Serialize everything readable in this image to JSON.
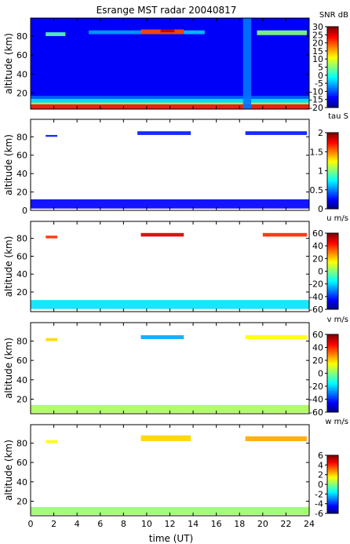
{
  "figure": {
    "title": "Esrange MST radar 20040817",
    "xlabel": "time (UT)",
    "xlim": [
      0,
      24
    ],
    "xticks": [
      0,
      2,
      4,
      6,
      8,
      10,
      12,
      14,
      16,
      18,
      20,
      22,
      24
    ]
  },
  "chart_data": [
    {
      "type": "heatmap",
      "quantity": "SNR",
      "colorbar_label": "SNR dB",
      "ylabel": "altitude (km)",
      "ylim": [
        3,
        99
      ],
      "yticks": [
        20,
        40,
        60,
        80
      ],
      "clim": [
        -20,
        30
      ],
      "cticks": [
        -20,
        -15,
        -10,
        -5,
        0,
        5,
        10,
        15,
        20,
        25,
        30
      ],
      "regions": [
        {
          "t": [
            0,
            24
          ],
          "alt": [
            3,
            8
          ],
          "value": 22
        },
        {
          "t": [
            0,
            24
          ],
          "alt": [
            8,
            10
          ],
          "value": 8
        },
        {
          "t": [
            0,
            24
          ],
          "alt": [
            10,
            14
          ],
          "value": -2
        },
        {
          "t": [
            0,
            24
          ],
          "alt": [
            14,
            17
          ],
          "value": -9
        },
        {
          "t": [
            1.3,
            3.0
          ],
          "alt": [
            80,
            84
          ],
          "value": 3
        },
        {
          "t": [
            5,
            9.5
          ],
          "alt": [
            82,
            86
          ],
          "value": -6
        },
        {
          "t": [
            9.5,
            13.2
          ],
          "alt": [
            82,
            87
          ],
          "value": 20
        },
        {
          "t": [
            11.2,
            12.4
          ],
          "alt": [
            84,
            87
          ],
          "value": 27
        },
        {
          "t": [
            13.2,
            15
          ],
          "alt": [
            82,
            86
          ],
          "value": -4
        },
        {
          "t": [
            18.3,
            19.0
          ],
          "alt": [
            3,
            99
          ],
          "value": -8
        },
        {
          "t": [
            19.5,
            23.8
          ],
          "alt": [
            81,
            86
          ],
          "value": 5
        }
      ]
    },
    {
      "type": "heatmap",
      "quantity": "tau",
      "colorbar_label": "tau S",
      "ylabel": "altitude (km)",
      "ylim": [
        0,
        99
      ],
      "yticks": [
        0,
        20,
        40,
        60,
        80
      ],
      "clim": [
        0,
        2
      ],
      "cticks": [
        0,
        0.5,
        1,
        1.5,
        2
      ],
      "regions": [
        {
          "t": [
            0,
            24
          ],
          "alt": [
            2,
            12
          ],
          "value": 0.25
        },
        {
          "t": [
            1.3,
            2.3
          ],
          "alt": [
            80,
            82
          ],
          "value": 0.3
        },
        {
          "t": [
            9.2,
            13.8
          ],
          "alt": [
            82,
            86
          ],
          "value": 0.3
        },
        {
          "t": [
            18.5,
            23.8
          ],
          "alt": [
            82,
            86
          ],
          "value": 0.3
        }
      ]
    },
    {
      "type": "heatmap",
      "quantity": "u",
      "colorbar_label": "u m/s",
      "ylabel": "altitude (km)",
      "ylim": [
        -2,
        99
      ],
      "yticks": [
        20,
        40,
        60,
        80
      ],
      "clim": [
        -60,
        60
      ],
      "cticks": [
        -60,
        -40,
        -20,
        0,
        20,
        40,
        60
      ],
      "regions": [
        {
          "t": [
            0,
            24
          ],
          "alt": [
            1,
            11
          ],
          "value": -18
        },
        {
          "t": [
            1.3,
            2.3
          ],
          "alt": [
            80,
            83
          ],
          "value": 40
        },
        {
          "t": [
            9.5,
            13.2
          ],
          "alt": [
            82,
            86
          ],
          "value": 50
        },
        {
          "t": [
            20.0,
            23.8
          ],
          "alt": [
            82,
            86
          ],
          "value": 40
        }
      ]
    },
    {
      "type": "heatmap",
      "quantity": "v",
      "colorbar_label": "v m/s",
      "ylabel": "altitude (km)",
      "ylim": [
        5,
        99
      ],
      "yticks": [
        20,
        40,
        60,
        80
      ],
      "clim": [
        -60,
        60
      ],
      "cticks": [
        -60,
        -40,
        -20,
        0,
        20,
        40,
        60
      ],
      "regions": [
        {
          "t": [
            0,
            24
          ],
          "alt": [
            6,
            14
          ],
          "value": 5
        },
        {
          "t": [
            1.3,
            2.3
          ],
          "alt": [
            80,
            83
          ],
          "value": 20
        },
        {
          "t": [
            9.5,
            13.2
          ],
          "alt": [
            82,
            86
          ],
          "value": -25
        },
        {
          "t": [
            18.5,
            23.8
          ],
          "alt": [
            82,
            86
          ],
          "value": 15
        }
      ]
    },
    {
      "type": "heatmap",
      "quantity": "w",
      "colorbar_label": "w m/s",
      "ylabel": "altitude (km)",
      "ylim": [
        5,
        99
      ],
      "yticks": [
        20,
        40,
        60,
        80
      ],
      "clim": [
        -6,
        6
      ],
      "cticks": [
        -6,
        -4,
        -2,
        0,
        2,
        4,
        6
      ],
      "regions": [
        {
          "t": [
            0,
            24
          ],
          "alt": [
            6,
            14
          ],
          "value": 0.3
        },
        {
          "t": [
            1.3,
            2.3
          ],
          "alt": [
            80,
            83
          ],
          "value": 1.5
        },
        {
          "t": [
            9.5,
            13.8
          ],
          "alt": [
            82,
            88
          ],
          "value": 2
        },
        {
          "t": [
            18.5,
            23.8
          ],
          "alt": [
            82,
            87
          ],
          "value": 2.5
        }
      ]
    }
  ]
}
